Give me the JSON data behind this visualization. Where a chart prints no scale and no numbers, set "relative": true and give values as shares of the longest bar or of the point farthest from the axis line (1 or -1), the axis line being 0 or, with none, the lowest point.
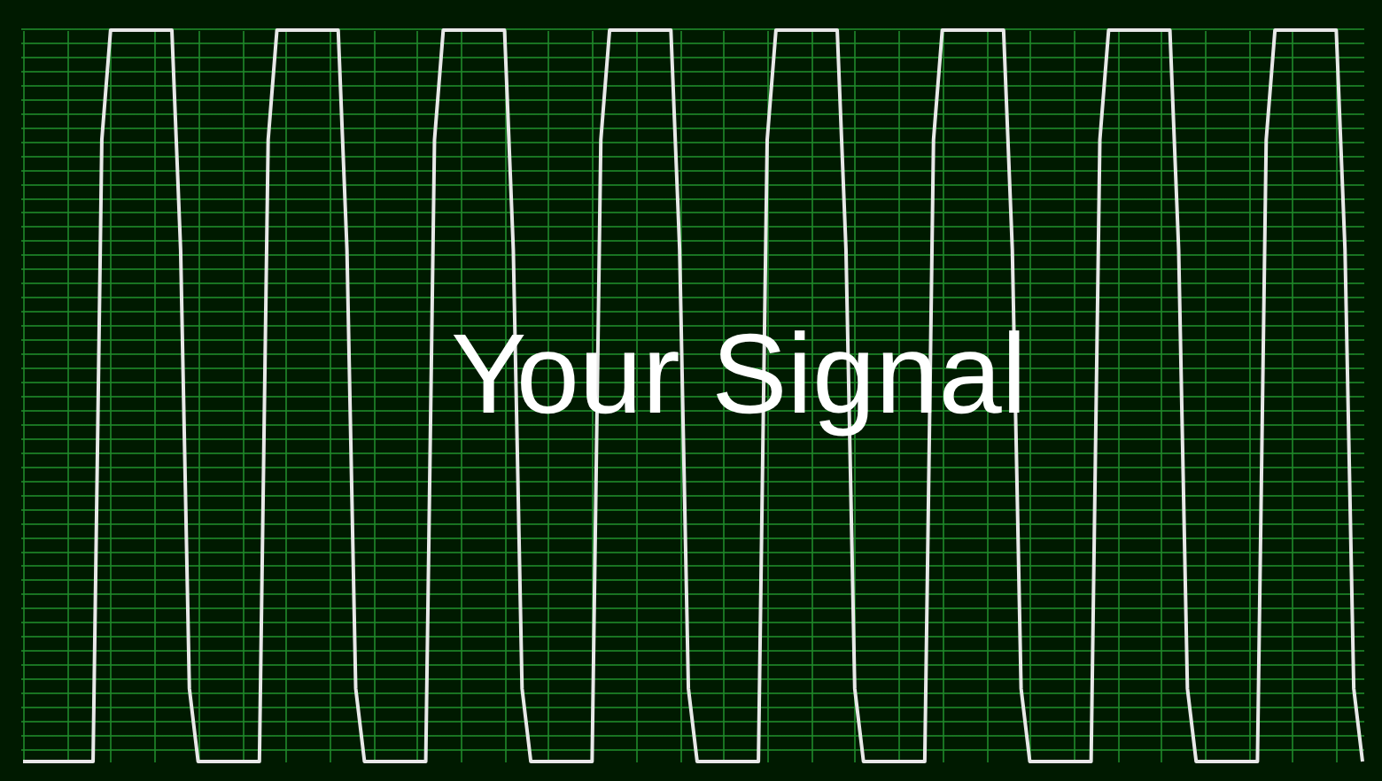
{
  "chart_data": {
    "type": "line",
    "relative": true,
    "grid": true,
    "tick_labels": false,
    "annotations": [
      "Your Signal"
    ],
    "categories": [
      null,
      null,
      null,
      null,
      null,
      null,
      null,
      null,
      null,
      null,
      null,
      null,
      null,
      null,
      null,
      null,
      null,
      null,
      null,
      null,
      null,
      null,
      null,
      null,
      null,
      null,
      null,
      null,
      null,
      null,
      null,
      null,
      null,
      null,
      null,
      null,
      null,
      null,
      null,
      null,
      null,
      null,
      null,
      null,
      null,
      null,
      null,
      null,
      null,
      null,
      null,
      null,
      null,
      null,
      null,
      null,
      null,
      null,
      null,
      null,
      null,
      null,
      null,
      null,
      null,
      null,
      null,
      null,
      null,
      null,
      null,
      null,
      null,
      null,
      null,
      null,
      null,
      null,
      null,
      null,
      null,
      null,
      null,
      null,
      null,
      null,
      null,
      null,
      null,
      null,
      null,
      null,
      null,
      null,
      null,
      null,
      null,
      null,
      null,
      null,
      null,
      null,
      null,
      null,
      null,
      null,
      null,
      null,
      null,
      null,
      null,
      null,
      null,
      null,
      null,
      null,
      null,
      null,
      null,
      null,
      null,
      null,
      null,
      null,
      null,
      null,
      null,
      null,
      null,
      null,
      null,
      null,
      null,
      null,
      null,
      null,
      null,
      null,
      null,
      null,
      null,
      null,
      null,
      null,
      null,
      null,
      null,
      null,
      null,
      null,
      null,
      null,
      null,
      null
    ],
    "series": [
      {
        "color": "#e8e8e8",
        "values": [
          0,
          0,
          0,
          0,
          0,
          0,
          0,
          0,
          0,
          0.85,
          1,
          1,
          1,
          1,
          1,
          1,
          1,
          1,
          0.7,
          0.1,
          0,
          0,
          0,
          0,
          0,
          0,
          0,
          0,
          0.85,
          1,
          1,
          1,
          1,
          1,
          1,
          1,
          1,
          0.7,
          0.1,
          0,
          0,
          0,
          0,
          0,
          0,
          0,
          0,
          0.85,
          1,
          1,
          1,
          1,
          1,
          1,
          1,
          1,
          0.7,
          0.1,
          0,
          0,
          0,
          0,
          0,
          0,
          0,
          0,
          0.85,
          1,
          1,
          1,
          1,
          1,
          1,
          1,
          1,
          0.7,
          0.1,
          0,
          0,
          0,
          0,
          0,
          0,
          0,
          0,
          0.85,
          1,
          1,
          1,
          1,
          1,
          1,
          1,
          1,
          0.7,
          0.1,
          0,
          0,
          0,
          0,
          0,
          0,
          0,
          0,
          0.85,
          1,
          1,
          1,
          1,
          1,
          1,
          1,
          1,
          0.7,
          0.1,
          0,
          0,
          0,
          0,
          0,
          0,
          0,
          0,
          0.85,
          1,
          1,
          1,
          1,
          1,
          1,
          1,
          1,
          0.7,
          0.1,
          0,
          0,
          0,
          0,
          0,
          0,
          0,
          0,
          0.85,
          1,
          1,
          1,
          1,
          1,
          1,
          1,
          1,
          0.7,
          0.1,
          0
        ]
      }
    ]
  }
}
